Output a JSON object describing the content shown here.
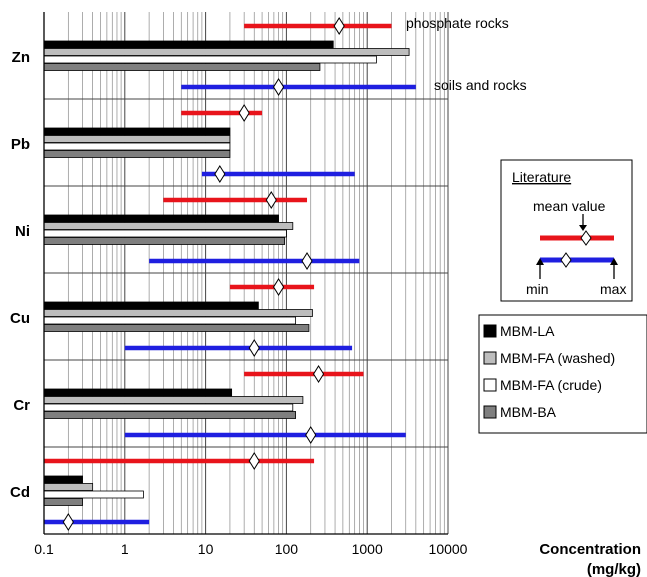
{
  "chart_data": {
    "type": "bar",
    "orientation": "horizontal",
    "x_scale": "log",
    "xlim": [
      0.1,
      10000
    ],
    "x_ticks": [
      "0.1",
      "1",
      "10",
      "100",
      "1000",
      "10000"
    ],
    "xlabel": "Concentration (mg/kg)",
    "xlabel_line1": "Concentration",
    "xlabel_line2": "(mg/kg)",
    "grid": "vertical minor and major log gridlines",
    "categories": [
      "Zn",
      "Pb",
      "Ni",
      "Cu",
      "Cr",
      "Cd"
    ],
    "series": [
      {
        "name": "MBM-LA",
        "color": "#000000",
        "values": [
          380,
          20,
          80,
          45,
          21,
          0.3
        ]
      },
      {
        "name": "MBM-FA (washed)",
        "color": "#bdbdbd",
        "values": [
          3300,
          20,
          120,
          210,
          160,
          0.4
        ]
      },
      {
        "name": "MBM-FA (crude)",
        "color": "#ffffff",
        "values": [
          1300,
          20,
          100,
          130,
          120,
          1.7
        ]
      },
      {
        "name": "MBM-BA",
        "color": "#7f7f7f",
        "values": [
          260,
          20,
          95,
          190,
          130,
          0.3
        ]
      }
    ],
    "literature": {
      "phosphate_rocks": {
        "color": "#e8141b",
        "ranges": [
          {
            "category": "Zn",
            "min": 30,
            "mean": 450,
            "max": 2000
          },
          {
            "category": "Pb",
            "min": 5,
            "mean": 30,
            "max": 50
          },
          {
            "category": "Ni",
            "min": 3,
            "mean": 65,
            "max": 180
          },
          {
            "category": "Cu",
            "min": 20,
            "mean": 80,
            "max": 220
          },
          {
            "category": "Cr",
            "min": 30,
            "mean": 250,
            "max": 900
          },
          {
            "category": "Cd",
            "min": 0.1,
            "mean": 40,
            "max": 220
          }
        ]
      },
      "soils_and_rocks": {
        "color": "#1f1fe0",
        "ranges": [
          {
            "category": "Zn",
            "min": 5,
            "mean": 80,
            "max": 4000
          },
          {
            "category": "Pb",
            "min": 9,
            "mean": 15,
            "max": 700
          },
          {
            "category": "Ni",
            "min": 2,
            "mean": 180,
            "max": 800
          },
          {
            "category": "Cu",
            "min": 1,
            "mean": 40,
            "max": 650
          },
          {
            "category": "Cr",
            "min": 1,
            "mean": 200,
            "max": 3000
          },
          {
            "category": "Cd",
            "min": 0.1,
            "mean": 0.2,
            "max": 2
          }
        ]
      }
    },
    "annotations": [
      "phosphate rocks",
      "soils and rocks"
    ],
    "legend_placement": "right"
  },
  "legend_box": {
    "title": "Literature",
    "mean_label": "mean value",
    "min_label": "min",
    "max_label": "max"
  }
}
